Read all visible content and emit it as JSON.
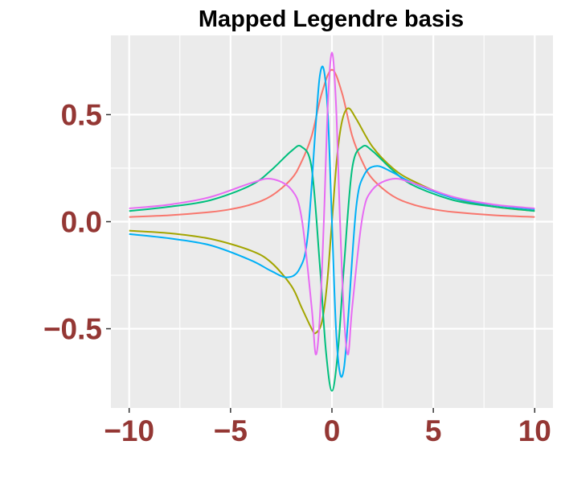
{
  "chart_data": {
    "type": "line",
    "title": "Mapped Legendre basis",
    "xlabel": "",
    "ylabel": "",
    "xlim": [
      -10.9,
      10.9
    ],
    "ylim": [
      -0.87,
      0.87
    ],
    "x_ticks": [
      -10,
      -5,
      0,
      5,
      10
    ],
    "x_tick_labels": [
      "−10",
      "−5",
      "0",
      "5",
      "10"
    ],
    "y_ticks": [
      -0.5,
      0.0,
      0.5
    ],
    "y_tick_labels": [
      "−0.5",
      "0.0",
      "0.5"
    ],
    "grid": true,
    "legend": "none",
    "colors": {
      "panel_background": "#EBEBEB",
      "grid": "#FFFFFF",
      "tick_label": "#943734",
      "tick_mark": "#333333"
    },
    "series": [
      {
        "color": "#F8766D",
        "x": [
          -10,
          -8,
          -6,
          -5,
          -4,
          -3,
          -2,
          -1.5,
          -1,
          -0.5,
          0,
          0.5,
          1,
          1.5,
          2,
          3,
          4,
          5,
          6,
          8,
          10
        ],
        "y": [
          0.022,
          0.03,
          0.045,
          0.058,
          0.08,
          0.12,
          0.2,
          0.28,
          0.4,
          0.6,
          0.71,
          0.6,
          0.4,
          0.28,
          0.2,
          0.12,
          0.08,
          0.058,
          0.045,
          0.03,
          0.022
        ]
      },
      {
        "color": "#A3A500",
        "x": [
          -10,
          -8,
          -6,
          -4,
          -3,
          -2,
          -1.5,
          -1,
          -0.8,
          -0.5,
          -0.25,
          0,
          0.25,
          0.5,
          0.8,
          1.2,
          2,
          3,
          4,
          6,
          8,
          10
        ],
        "y": [
          -0.042,
          -0.054,
          -0.08,
          -0.135,
          -0.19,
          -0.3,
          -0.4,
          -0.5,
          -0.52,
          -0.47,
          -0.3,
          0.0,
          0.3,
          0.47,
          0.53,
          0.48,
          0.35,
          0.25,
          0.19,
          0.11,
          0.07,
          0.05
        ]
      },
      {
        "color": "#00BF7D",
        "x": [
          -10,
          -8,
          -6,
          -4,
          -3,
          -2,
          -1.5,
          -1,
          -0.6,
          -0.3,
          0,
          0.3,
          0.6,
          1,
          1.5,
          2,
          3,
          4,
          6,
          8,
          10
        ],
        "y": [
          0.05,
          0.07,
          0.1,
          0.17,
          0.24,
          0.33,
          0.35,
          0.25,
          -0.2,
          -0.6,
          -0.79,
          -0.6,
          -0.2,
          0.25,
          0.35,
          0.33,
          0.24,
          0.17,
          0.1,
          0.07,
          0.05
        ]
      },
      {
        "color": "#00B0F6",
        "x": [
          -10,
          -8,
          -6,
          -4,
          -3,
          -2.2,
          -1.6,
          -1.2,
          -0.8,
          -0.6,
          -0.4,
          -0.2,
          0,
          0.2,
          0.4,
          0.6,
          0.8,
          1.2,
          1.6,
          2.2,
          3,
          4,
          6,
          8,
          10
        ],
        "y": [
          -0.058,
          -0.078,
          -0.11,
          -0.18,
          -0.23,
          -0.26,
          -0.22,
          -0.07,
          0.45,
          0.68,
          0.71,
          0.5,
          0.0,
          -0.5,
          -0.71,
          -0.68,
          -0.45,
          0.07,
          0.22,
          0.26,
          0.23,
          0.18,
          0.11,
          0.078,
          0.058
        ]
      },
      {
        "color": "#E76BF3",
        "x": [
          -10,
          -8,
          -6,
          -4,
          -3,
          -2,
          -1.5,
          -1,
          -0.8,
          -0.6,
          -0.4,
          -0.2,
          0,
          0.2,
          0.4,
          0.6,
          0.8,
          1,
          1.5,
          2,
          3,
          4,
          6,
          8,
          10
        ],
        "y": [
          0.062,
          0.08,
          0.115,
          0.18,
          0.2,
          0.15,
          0.02,
          -0.4,
          -0.62,
          -0.45,
          0.0,
          0.55,
          0.79,
          0.55,
          0.0,
          -0.45,
          -0.62,
          -0.4,
          0.02,
          0.15,
          0.2,
          0.18,
          0.115,
          0.08,
          0.062
        ]
      }
    ]
  }
}
